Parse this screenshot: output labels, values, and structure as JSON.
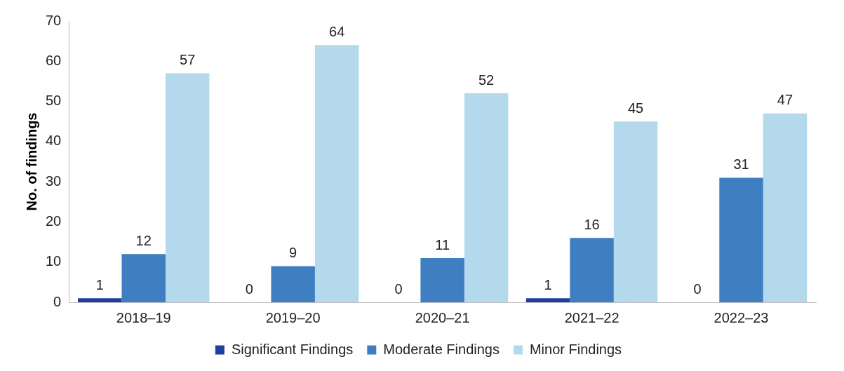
{
  "chart_data": {
    "type": "bar",
    "y_label": "No. of findings",
    "categories": [
      "2018–19",
      "2019–20",
      "2020–21",
      "2021–22",
      "2022–23"
    ],
    "series": [
      {
        "name": "Significant Findings",
        "color": "#1f3f9e",
        "values": [
          1,
          0,
          0,
          1,
          0
        ]
      },
      {
        "name": "Moderate Findings",
        "color": "#3f7ec1",
        "values": [
          12,
          9,
          11,
          16,
          31
        ]
      },
      {
        "name": "Minor Findings",
        "color": "#b4d8ec",
        "values": [
          57,
          64,
          52,
          45,
          47
        ]
      }
    ],
    "ylim": [
      0,
      70
    ],
    "yticks": [
      0,
      10,
      20,
      30,
      40,
      50,
      60,
      70
    ],
    "grid": false,
    "legend": "bottom",
    "data_labels": true
  }
}
